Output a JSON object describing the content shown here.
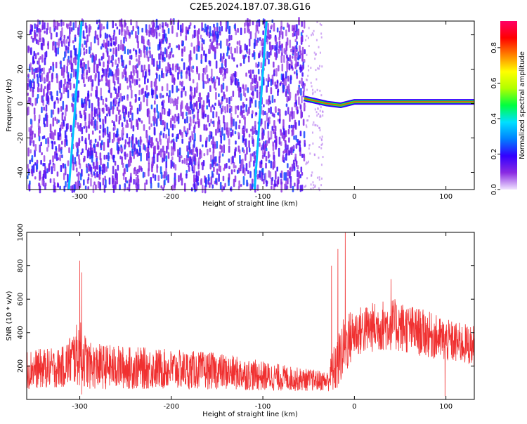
{
  "chart_data": [
    {
      "panel": "top",
      "type": "heatmap",
      "title": "C2E5.2024.187.07.38.G16",
      "xlabel": "Height of straight line (km)",
      "ylabel": "Frequency (Hz)",
      "xlim": [
        -358,
        131
      ],
      "ylim": [
        -50,
        48
      ],
      "x_ticks": [
        -300,
        -200,
        -100,
        0,
        100
      ],
      "x_tick_labels": [
        "-300",
        "-200",
        "-100",
        "0",
        "100"
      ],
      "y_ticks": [
        -40,
        -20,
        0,
        20,
        40
      ],
      "y_tick_labels": [
        "-40",
        "-20",
        "0",
        "20",
        "40"
      ],
      "colorbar": {
        "label": "Normalized spectral amplitude",
        "range": [
          0,
          0.95
        ],
        "ticks": [
          0.0,
          0.2,
          0.4,
          0.6,
          0.8
        ],
        "tick_labels": [
          "0.0",
          "0.2",
          "0.4",
          "0.6",
          "0.8"
        ],
        "colormap": "rainbow",
        "colors": [
          "#f0e4ff",
          "#8a2be2",
          "#3300ff",
          "#0080ff",
          "#00e0ff",
          "#00ff40",
          "#b0ff00",
          "#ffff00",
          "#ff8000",
          "#ff0000",
          "#ff0066"
        ]
      },
      "noise_region_x": [
        -358,
        -55
      ],
      "noise_level": 0.15,
      "streaks": [
        {
          "x": [
            -312,
            -298
          ],
          "y": [
            -50,
            48
          ],
          "peak": 0.35
        },
        {
          "x": [
            -109,
            -96
          ],
          "y": [
            -50,
            48
          ],
          "peak": 0.35
        }
      ],
      "carrier": {
        "x": [
          -55,
          -30,
          -15,
          0,
          90,
          131
        ],
        "y": [
          3,
          0,
          -1,
          1,
          1,
          1
        ],
        "amplitude": 0.8
      },
      "grid": false
    },
    {
      "panel": "bottom",
      "type": "line",
      "xlabel": "Height of straight line (km)",
      "ylabel": "SNR (10 * v/v)",
      "xlim": [
        -358,
        131
      ],
      "ylim": [
        0,
        1000
      ],
      "x_ticks": [
        -300,
        -200,
        -100,
        0,
        100
      ],
      "x_tick_labels": [
        "-300",
        "-200",
        "-100",
        "0",
        "100"
      ],
      "y_ticks": [
        200,
        400,
        600,
        800,
        1000
      ],
      "y_tick_labels": [
        "200",
        "400",
        "600",
        "800",
        "1000"
      ],
      "series": [
        {
          "color": "#f03030",
          "envelope_x": [
            -358,
            -320,
            -300,
            -290,
            -250,
            -200,
            -150,
            -100,
            -60,
            -30,
            -20,
            -10,
            0,
            20,
            40,
            60,
            80,
            100,
            131
          ],
          "envelope_mean": [
            180,
            190,
            280,
            200,
            190,
            180,
            170,
            140,
            120,
            110,
            200,
            330,
            400,
            430,
            450,
            420,
            390,
            350,
            320
          ],
          "envelope_spread": [
            120,
            120,
            200,
            140,
            130,
            120,
            110,
            90,
            70,
            60,
            170,
            190,
            150,
            150,
            160,
            150,
            140,
            130,
            120
          ],
          "spikes": [
            {
              "x": -300,
              "y": 830
            },
            {
              "x": -298,
              "y": 760
            },
            {
              "x": -25,
              "y": 800
            },
            {
              "x": -18,
              "y": 900
            },
            {
              "x": -10,
              "y": 1000
            },
            {
              "x": 40,
              "y": 720
            }
          ],
          "dips": [
            {
              "x": -298,
              "y": 30
            },
            {
              "x": 99,
              "y": 20
            }
          ]
        }
      ],
      "grid": false
    }
  ]
}
